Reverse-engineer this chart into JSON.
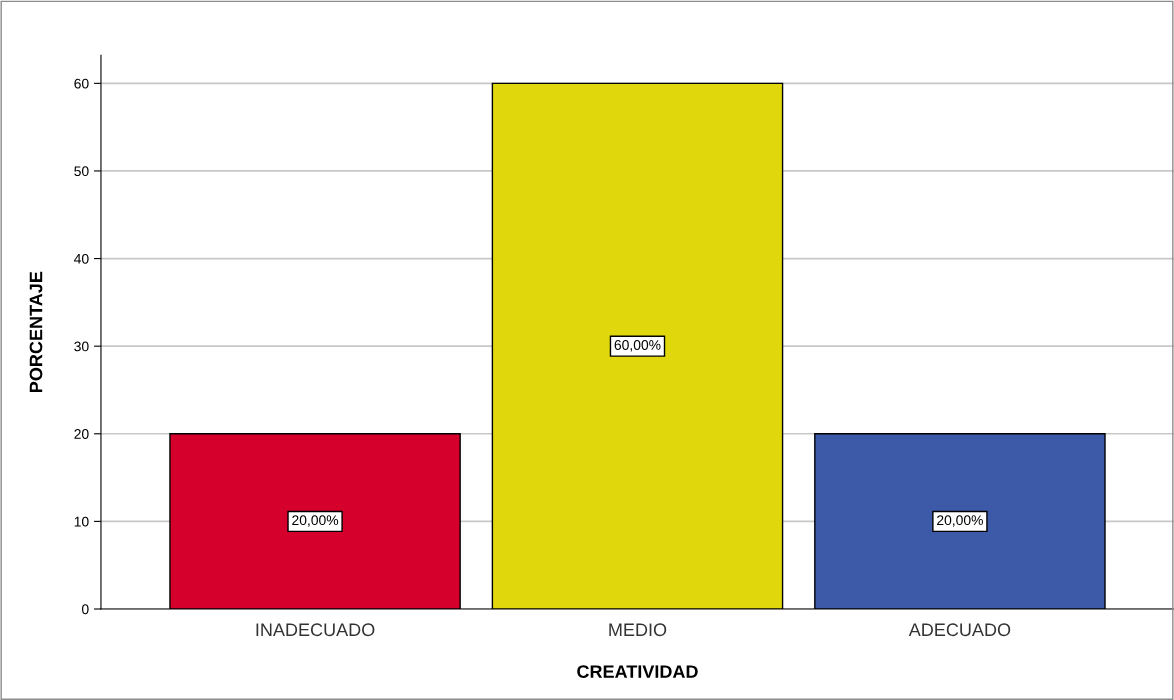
{
  "chart_data": {
    "type": "bar",
    "xlabel": "CREATIVIDAD",
    "ylabel": "PORCENTAJE",
    "categories": [
      "INADECUADO",
      "MEDIO",
      "ADECUADO"
    ],
    "values": [
      20,
      60,
      20
    ],
    "colors": [
      "#d5002c",
      "#e0d80c",
      "#3d5aa8"
    ],
    "value_labels": [
      "20,00%",
      "60,00%",
      "20,00%"
    ],
    "ylim": [
      0,
      63.2
    ],
    "yticks": [
      0,
      10,
      20,
      30,
      40,
      50,
      60
    ],
    "grid": "y"
  }
}
